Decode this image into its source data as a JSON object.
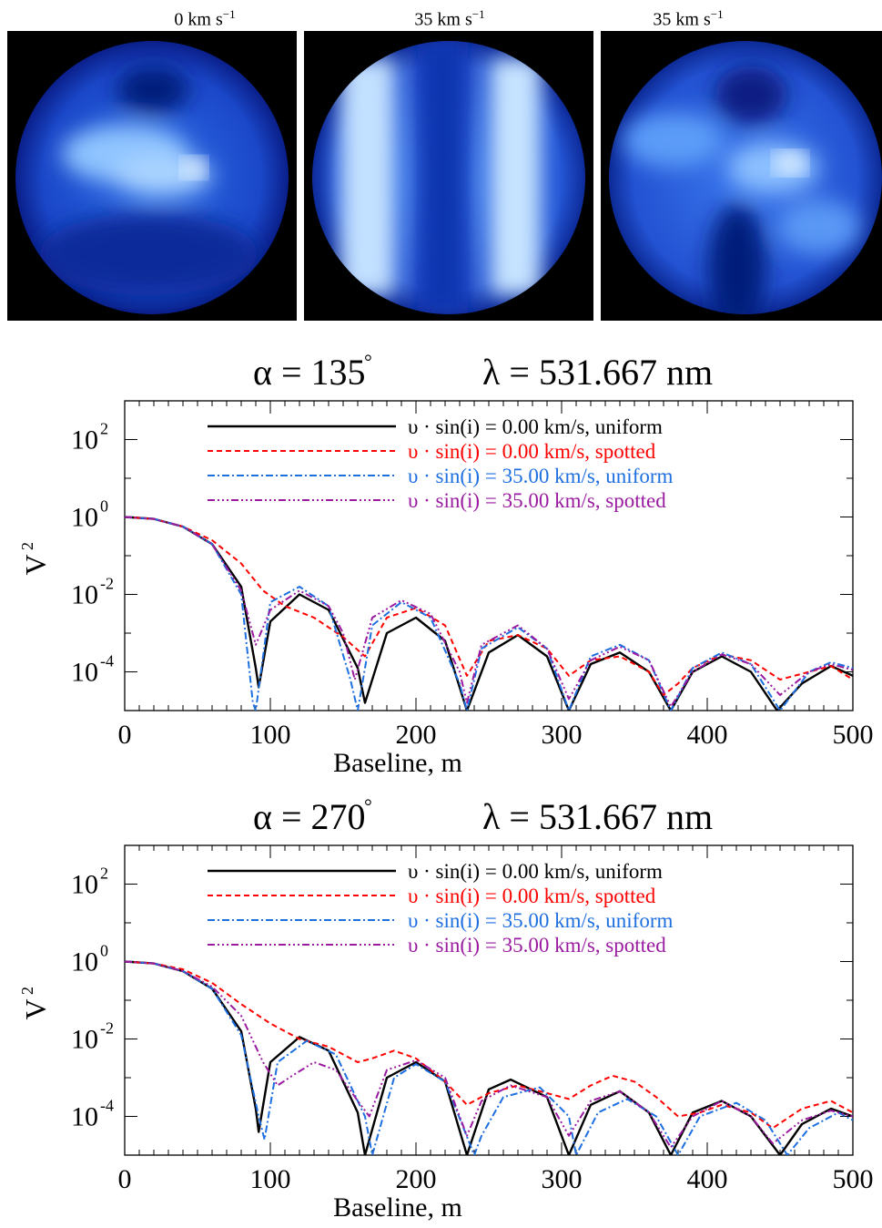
{
  "images": [
    {
      "label_base": "0 km s",
      "label_exp": "−1"
    },
    {
      "label_base": "35 km s",
      "label_exp": "−1"
    },
    {
      "label_base": "35 km s",
      "label_exp": "−1"
    }
  ],
  "chart_data": [
    {
      "type": "line",
      "title_alpha": "α = 135",
      "title_degree": "°",
      "title_lambda": "λ = 531.667 nm",
      "xlabel": "Baseline, m",
      "ylabel_base": "V",
      "ylabel_exp": "2",
      "xlim": [
        0,
        500
      ],
      "ylim_log10": [
        -5,
        3
      ],
      "yscale": "log",
      "xticks": [
        0,
        100,
        200,
        300,
        400,
        500
      ],
      "yticks": [
        {
          "base": "10",
          "exp": "2",
          "v": 2
        },
        {
          "base": "10",
          "exp": "0",
          "v": 0
        },
        {
          "base": "10",
          "exp": "-2",
          "v": -2
        },
        {
          "base": "10",
          "exp": "-4",
          "v": -4
        }
      ],
      "legend_position": "top",
      "series": [
        {
          "name": "υ · sin(i) =  0.00 km/s, uniform",
          "color": "#000000",
          "dash": "",
          "x": [
            0,
            20,
            40,
            60,
            80,
            90,
            92,
            100,
            120,
            140,
            160,
            165,
            180,
            200,
            220,
            235,
            250,
            270,
            290,
            305,
            320,
            340,
            360,
            375,
            390,
            410,
            430,
            448,
            465,
            485,
            500
          ],
          "log10y": [
            0,
            -0.05,
            -0.25,
            -0.7,
            -1.8,
            -3.9,
            -4.4,
            -2.7,
            -2.0,
            -2.4,
            -3.9,
            -4.8,
            -3.0,
            -2.6,
            -3.2,
            -5.0,
            -3.5,
            -3.05,
            -3.6,
            -5.0,
            -3.8,
            -3.5,
            -4.0,
            -5.0,
            -4.0,
            -3.6,
            -4.0,
            -5.0,
            -4.3,
            -3.85,
            -4.1
          ]
        },
        {
          "name": "υ · sin(i) =  0.00 km/s, spotted",
          "color": "#ff0000",
          "dash": "6,4",
          "x": [
            0,
            20,
            40,
            60,
            80,
            95,
            110,
            130,
            150,
            165,
            180,
            200,
            220,
            235,
            250,
            270,
            290,
            305,
            320,
            340,
            360,
            370,
            380,
            390,
            410,
            430,
            450,
            470,
            485,
            500
          ],
          "log10y": [
            0,
            -0.05,
            -0.25,
            -0.6,
            -1.2,
            -1.9,
            -2.3,
            -2.6,
            -3.1,
            -3.6,
            -2.6,
            -2.35,
            -2.8,
            -4.1,
            -3.2,
            -3.05,
            -3.4,
            -4.1,
            -3.7,
            -3.6,
            -4.0,
            -4.6,
            -4.3,
            -3.9,
            -3.55,
            -3.7,
            -4.2,
            -4.0,
            -3.85,
            -4.2
          ]
        },
        {
          "name": "υ · sin(i) = 35.00 km/s, uniform",
          "color": "#1e6fe0",
          "dash": "8,3,2,3",
          "x": [
            0,
            20,
            40,
            60,
            80,
            88,
            90,
            100,
            120,
            140,
            155,
            160,
            170,
            190,
            210,
            230,
            235,
            245,
            270,
            290,
            305,
            320,
            340,
            360,
            375,
            390,
            410,
            430,
            450,
            470,
            485,
            500
          ],
          "log10y": [
            0,
            -0.05,
            -0.25,
            -0.7,
            -2.0,
            -4.8,
            -5.0,
            -2.2,
            -1.8,
            -2.3,
            -4.2,
            -5.0,
            -2.8,
            -2.2,
            -2.6,
            -4.3,
            -5.0,
            -3.4,
            -2.85,
            -3.4,
            -5.0,
            -3.6,
            -3.3,
            -3.7,
            -5.0,
            -3.9,
            -3.5,
            -3.8,
            -5.0,
            -4.0,
            -3.75,
            -3.9
          ]
        },
        {
          "name": "υ · sin(i) = 35.00 km/s, spotted",
          "color": "#9a1aa0",
          "dash": "8,3,2,3,2,3,2,3",
          "x": [
            0,
            20,
            40,
            60,
            80,
            90,
            100,
            120,
            140,
            150,
            158,
            170,
            190,
            210,
            230,
            235,
            245,
            270,
            290,
            305,
            320,
            340,
            360,
            375,
            390,
            410,
            430,
            450,
            470,
            485,
            500
          ],
          "log10y": [
            0,
            -0.05,
            -0.25,
            -0.7,
            -1.9,
            -3.3,
            -2.4,
            -1.9,
            -2.3,
            -3.0,
            -4.2,
            -2.6,
            -2.15,
            -2.5,
            -4.0,
            -4.8,
            -3.3,
            -2.8,
            -3.4,
            -4.7,
            -3.7,
            -3.35,
            -3.7,
            -4.9,
            -4.0,
            -3.55,
            -3.8,
            -4.6,
            -4.0,
            -3.8,
            -3.95
          ]
        }
      ]
    },
    {
      "type": "line",
      "title_alpha": "α = 270",
      "title_degree": "°",
      "title_lambda": "λ = 531.667 nm",
      "xlabel": "Baseline, m",
      "ylabel_base": "V",
      "ylabel_exp": "2",
      "xlim": [
        0,
        500
      ],
      "ylim_log10": [
        -5,
        3
      ],
      "yscale": "log",
      "xticks": [
        0,
        100,
        200,
        300,
        400,
        500
      ],
      "yticks": [
        {
          "base": "10",
          "exp": "2",
          "v": 2
        },
        {
          "base": "10",
          "exp": "0",
          "v": 0
        },
        {
          "base": "10",
          "exp": "-2",
          "v": -2
        },
        {
          "base": "10",
          "exp": "-4",
          "v": -4
        }
      ],
      "legend_position": "top",
      "series": [
        {
          "name": "υ · sin(i) =  0.00 km/s, uniform",
          "color": "#000000",
          "dash": "",
          "x": [
            0,
            20,
            40,
            60,
            80,
            90,
            92,
            100,
            120,
            140,
            160,
            165,
            180,
            200,
            220,
            235,
            250,
            265,
            290,
            305,
            320,
            340,
            360,
            375,
            390,
            410,
            430,
            450,
            465,
            485,
            500
          ],
          "log10y": [
            0,
            -0.05,
            -0.25,
            -0.7,
            -1.8,
            -3.8,
            -4.4,
            -2.6,
            -1.95,
            -2.3,
            -3.9,
            -5.0,
            -3.0,
            -2.6,
            -3.1,
            -5.0,
            -3.3,
            -3.05,
            -3.5,
            -5.0,
            -3.7,
            -3.35,
            -3.9,
            -5.0,
            -3.9,
            -3.6,
            -4.0,
            -5.0,
            -4.2,
            -3.8,
            -4.0
          ]
        },
        {
          "name": "υ · sin(i) =  0.00 km/s, spotted",
          "color": "#ff0000",
          "dash": "6,4",
          "x": [
            0,
            20,
            40,
            60,
            80,
            100,
            120,
            140,
            160,
            170,
            185,
            200,
            220,
            235,
            250,
            270,
            290,
            305,
            320,
            335,
            350,
            365,
            380,
            395,
            410,
            430,
            445,
            465,
            485,
            500
          ],
          "log10y": [
            0,
            -0.05,
            -0.2,
            -0.55,
            -1.1,
            -1.6,
            -2.0,
            -2.2,
            -2.6,
            -2.5,
            -2.3,
            -2.5,
            -3.1,
            -3.7,
            -3.4,
            -3.2,
            -3.4,
            -3.55,
            -3.2,
            -2.95,
            -3.1,
            -3.5,
            -4.0,
            -3.9,
            -3.7,
            -3.9,
            -4.3,
            -3.8,
            -3.6,
            -3.9
          ]
        },
        {
          "name": "υ · sin(i) = 35.00 km/s, uniform",
          "color": "#1e6fe0",
          "dash": "8,3,2,3",
          "x": [
            0,
            20,
            40,
            60,
            80,
            92,
            96,
            105,
            125,
            145,
            165,
            170,
            185,
            200,
            220,
            240,
            245,
            260,
            285,
            305,
            310,
            325,
            345,
            365,
            380,
            395,
            420,
            440,
            455,
            470,
            490,
            500
          ],
          "log10y": [
            0,
            -0.05,
            -0.25,
            -0.7,
            -1.9,
            -4.0,
            -4.6,
            -2.6,
            -2.05,
            -2.4,
            -4.0,
            -5.0,
            -3.0,
            -2.65,
            -3.1,
            -5.0,
            -4.5,
            -3.5,
            -3.25,
            -4.0,
            -5.0,
            -3.9,
            -3.55,
            -4.0,
            -5.0,
            -4.0,
            -3.65,
            -4.1,
            -5.0,
            -4.3,
            -3.9,
            -4.1
          ]
        },
        {
          "name": "υ · sin(i) = 35.00 km/s, spotted",
          "color": "#9a1aa0",
          "dash": "8,3,2,3,2,3,2,3",
          "x": [
            0,
            20,
            40,
            60,
            80,
            95,
            105,
            115,
            130,
            145,
            160,
            168,
            180,
            200,
            220,
            235,
            245,
            265,
            290,
            305,
            320,
            340,
            360,
            375,
            390,
            410,
            430,
            445,
            465,
            485,
            500
          ],
          "log10y": [
            0,
            -0.05,
            -0.25,
            -0.65,
            -1.4,
            -2.6,
            -3.2,
            -2.95,
            -2.6,
            -2.8,
            -3.6,
            -4.0,
            -2.8,
            -2.55,
            -3.0,
            -4.5,
            -3.6,
            -3.2,
            -3.5,
            -4.5,
            -3.6,
            -3.35,
            -3.9,
            -4.8,
            -4.0,
            -3.6,
            -4.0,
            -4.7,
            -4.1,
            -3.85,
            -4.0
          ]
        }
      ]
    }
  ]
}
